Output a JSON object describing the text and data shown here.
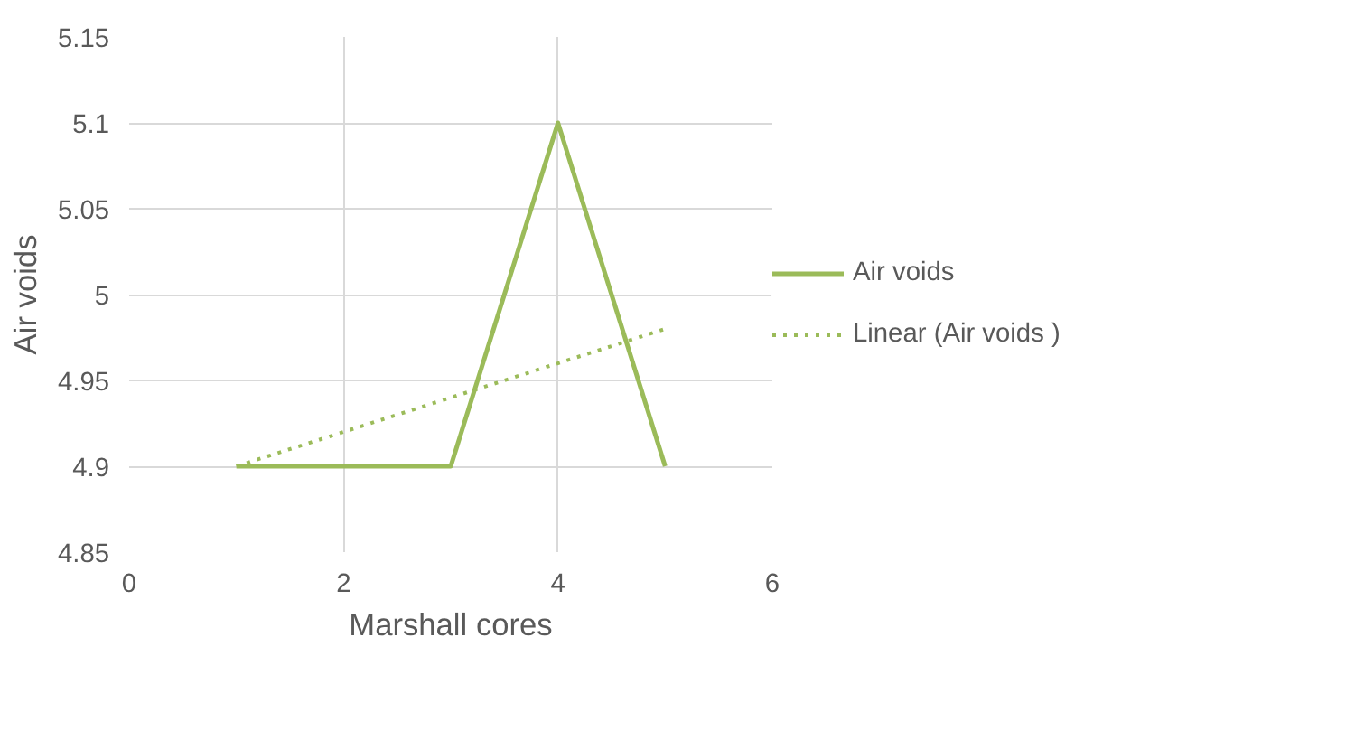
{
  "chart_data": {
    "type": "line",
    "xlabel": "Marshall cores",
    "ylabel": "Air voids",
    "x": [
      1,
      2,
      3,
      4,
      5
    ],
    "series": [
      {
        "name": "Air voids",
        "color": "#9bbb59",
        "values": [
          4.9,
          4.9,
          4.9,
          5.1,
          4.9
        ],
        "line_style": "solid"
      },
      {
        "name": "Linear (Air voids )",
        "color": "#9bbb59",
        "x": [
          1,
          5
        ],
        "values": [
          4.9,
          4.98
        ],
        "line_style": "dotted"
      }
    ],
    "xlim": [
      0,
      6
    ],
    "xticks": [
      0,
      2,
      4,
      6
    ],
    "ylim": [
      4.85,
      5.15
    ],
    "yticks": [
      4.85,
      4.9,
      4.95,
      5,
      5.05,
      5.1,
      5.15
    ],
    "grid": true,
    "legend": "right",
    "marker": "none"
  }
}
